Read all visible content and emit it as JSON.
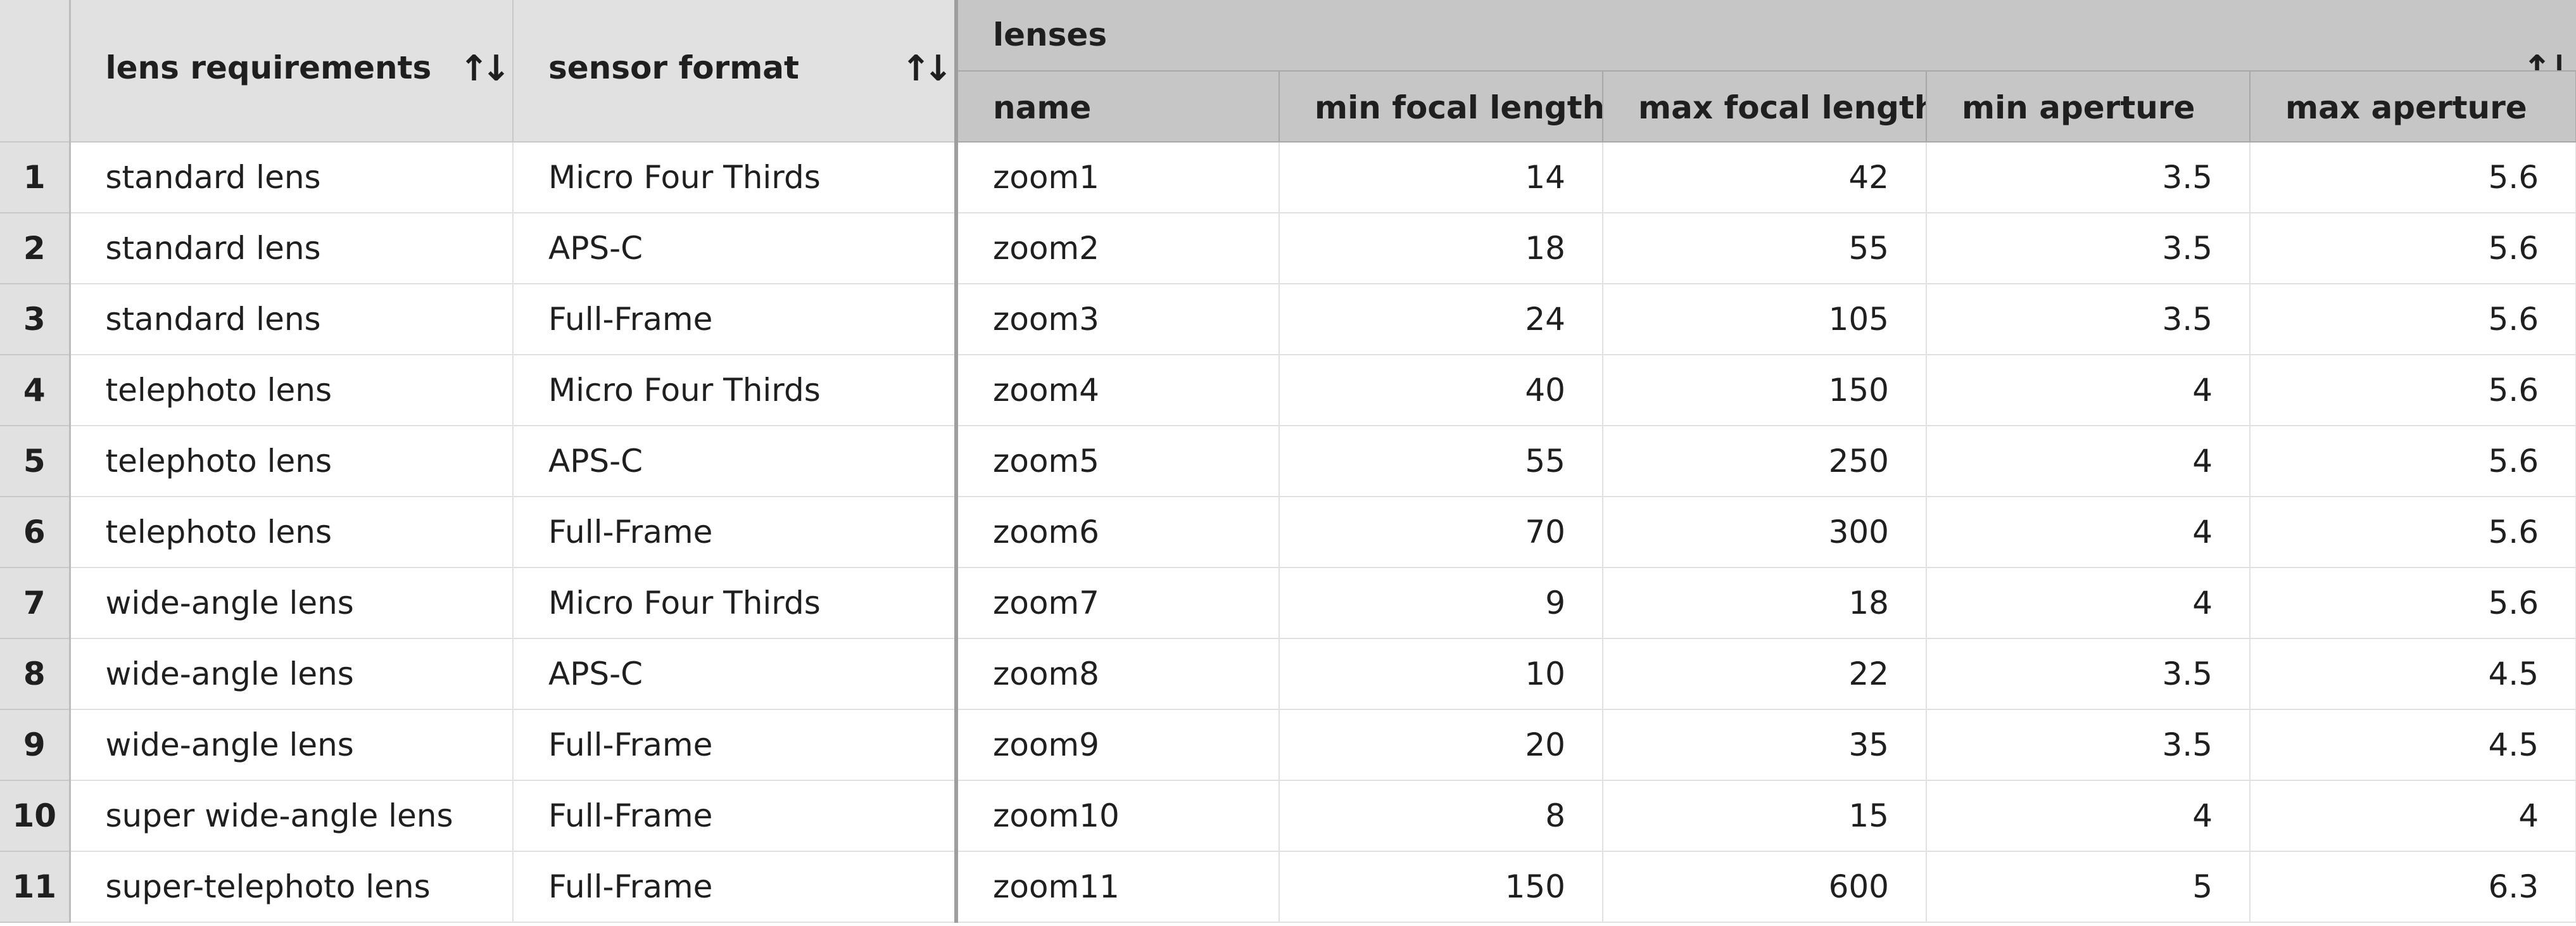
{
  "header": {
    "columns": {
      "lens_requirements": "lens requirements",
      "sensor_format": "sensor format",
      "lenses_group": "lenses",
      "name": "name",
      "min_focal_length": "min focal length",
      "max_focal_length": "max focal length",
      "min_aperture": "min aperture",
      "max_aperture": "max aperture"
    },
    "sort_glyph": "↑↓"
  },
  "rows": [
    {
      "index": "1",
      "req": "standard lens",
      "sensor": "Micro Four Thirds",
      "name": "zoom1",
      "min_fl": "14",
      "max_fl": "42",
      "min_ap": "3.5",
      "max_ap": "5.6"
    },
    {
      "index": "2",
      "req": "standard lens",
      "sensor": "APS-C",
      "name": "zoom2",
      "min_fl": "18",
      "max_fl": "55",
      "min_ap": "3.5",
      "max_ap": "5.6"
    },
    {
      "index": "3",
      "req": "standard lens",
      "sensor": "Full-Frame",
      "name": "zoom3",
      "min_fl": "24",
      "max_fl": "105",
      "min_ap": "3.5",
      "max_ap": "5.6"
    },
    {
      "index": "4",
      "req": "telephoto lens",
      "sensor": "Micro Four Thirds",
      "name": "zoom4",
      "min_fl": "40",
      "max_fl": "150",
      "min_ap": "4",
      "max_ap": "5.6"
    },
    {
      "index": "5",
      "req": "telephoto lens",
      "sensor": "APS-C",
      "name": "zoom5",
      "min_fl": "55",
      "max_fl": "250",
      "min_ap": "4",
      "max_ap": "5.6"
    },
    {
      "index": "6",
      "req": "telephoto lens",
      "sensor": "Full-Frame",
      "name": "zoom6",
      "min_fl": "70",
      "max_fl": "300",
      "min_ap": "4",
      "max_ap": "5.6"
    },
    {
      "index": "7",
      "req": "wide-angle lens",
      "sensor": "Micro Four Thirds",
      "name": "zoom7",
      "min_fl": "9",
      "max_fl": "18",
      "min_ap": "4",
      "max_ap": "5.6"
    },
    {
      "index": "8",
      "req": "wide-angle lens",
      "sensor": "APS-C",
      "name": "zoom8",
      "min_fl": "10",
      "max_fl": "22",
      "min_ap": "3.5",
      "max_ap": "4.5"
    },
    {
      "index": "9",
      "req": "wide-angle lens",
      "sensor": "Full-Frame",
      "name": "zoom9",
      "min_fl": "20",
      "max_fl": "35",
      "min_ap": "3.5",
      "max_ap": "4.5"
    },
    {
      "index": "10",
      "req": "super wide-angle lens",
      "sensor": "Full-Frame",
      "name": "zoom10",
      "min_fl": "8",
      "max_fl": "15",
      "min_ap": "4",
      "max_ap": "4"
    },
    {
      "index": "11",
      "req": "super-telephoto lens",
      "sensor": "Full-Frame",
      "name": "zoom11",
      "min_fl": "150",
      "max_fl": "600",
      "min_ap": "5",
      "max_ap": "6.3"
    }
  ]
}
